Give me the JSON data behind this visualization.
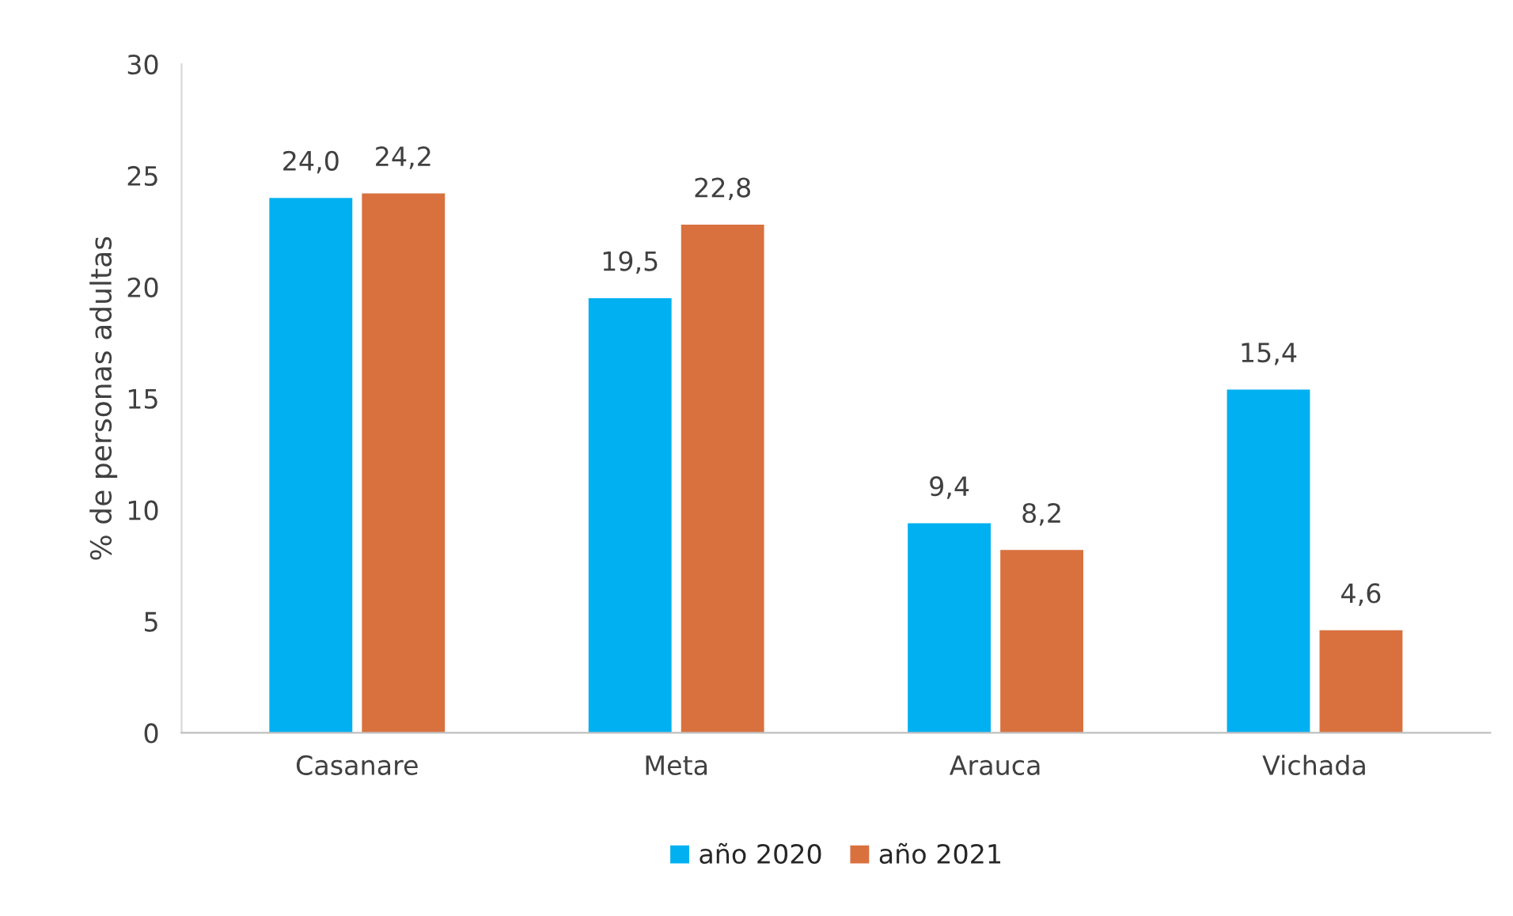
{
  "chart_data": {
    "type": "bar",
    "ylabel": "% de personas adultas",
    "categories": [
      "Casanare",
      "Meta",
      "Arauca",
      "Vichada"
    ],
    "series": [
      {
        "name": "año 2020",
        "color": "#00b0f0",
        "values": [
          24.0,
          19.5,
          9.4,
          15.4
        ],
        "value_labels": [
          "24,0",
          "19,5",
          "9,4",
          "15,4"
        ]
      },
      {
        "name": "año 2021",
        "color": "#d9713f",
        "values": [
          24.2,
          22.8,
          8.2,
          4.6
        ],
        "value_labels": [
          "24,2",
          "22,8",
          "8,2",
          "4,6"
        ]
      }
    ],
    "ylim": [
      0,
      30
    ],
    "yticks": [
      0,
      5,
      10,
      15,
      20,
      25,
      30
    ],
    "grid": false,
    "legend": "bottom"
  }
}
